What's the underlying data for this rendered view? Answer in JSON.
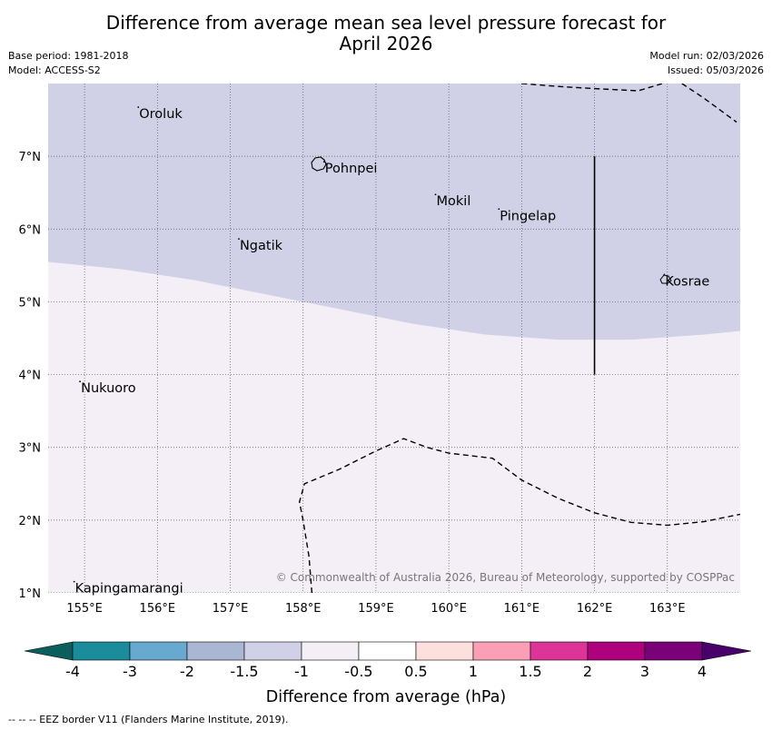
{
  "title_line1": "Difference from average mean sea level pressure forecast for",
  "title_line2": "April 2026",
  "base_period": "Base period: 1981-2018",
  "model": "Model: ACCESS-S2",
  "model_run": "Model run: 02/03/2026",
  "issued": "Issued: 05/03/2026",
  "copyright": "© Commonwealth of Australia 2026, Bureau of Meteorology, supported by COSPPac",
  "footer_note": "--  --  -- EEZ border V11 (Flanders Marine Institute, 2019).",
  "map": {
    "lon_range": [
      154.5,
      164.0
    ],
    "lat_range": [
      1.0,
      8.0
    ],
    "lon_ticks": [
      {
        "value": 155,
        "label": "155°E"
      },
      {
        "value": 156,
        "label": "156°E"
      },
      {
        "value": 157,
        "label": "157°E"
      },
      {
        "value": 158,
        "label": "158°E"
      },
      {
        "value": 159,
        "label": "159°E"
      },
      {
        "value": 160,
        "label": "160°E"
      },
      {
        "value": 161,
        "label": "161°E"
      },
      {
        "value": 162,
        "label": "162°E"
      },
      {
        "value": 163,
        "label": "163°E"
      }
    ],
    "lat_ticks": [
      {
        "value": 1,
        "label": "1°N"
      },
      {
        "value": 2,
        "label": "2°N"
      },
      {
        "value": 3,
        "label": "3°N"
      },
      {
        "value": 4,
        "label": "4°N"
      },
      {
        "value": 5,
        "label": "5°N"
      },
      {
        "value": 6,
        "label": "6°N"
      },
      {
        "value": 7,
        "label": "7°N"
      }
    ],
    "places": [
      {
        "name": "Oroluk",
        "lon": 155.75,
        "lat": 7.6
      },
      {
        "name": "Pohnpei",
        "lon": 158.3,
        "lat": 6.85
      },
      {
        "name": "Mokil",
        "lon": 159.83,
        "lat": 6.4
      },
      {
        "name": "Pingelap",
        "lon": 160.7,
        "lat": 6.2
      },
      {
        "name": "Ngatik",
        "lon": 157.13,
        "lat": 5.79
      },
      {
        "name": "Kosrae",
        "lon": 162.97,
        "lat": 5.3
      },
      {
        "name": "Nukuoro",
        "lon": 154.95,
        "lat": 3.83
      },
      {
        "name": "Kapingamarangi",
        "lon": 154.87,
        "lat": 1.08
      }
    ],
    "boundary_lon": 162.0,
    "boundary_lat_range": [
      4.0,
      7.0
    ],
    "zones": [
      {
        "category": "-1.5 to -1",
        "color": "#d0d1e6"
      },
      {
        "category": "-1 to -0.5",
        "color": "#f4eef6"
      }
    ],
    "zone_boundary": [
      [
        154.5,
        5.55
      ],
      [
        155.5,
        5.45
      ],
      [
        156.5,
        5.3
      ],
      [
        157.5,
        5.1
      ],
      [
        158.5,
        4.9
      ],
      [
        159.5,
        4.7
      ],
      [
        160.5,
        4.55
      ],
      [
        161.5,
        4.48
      ],
      [
        162.5,
        4.48
      ],
      [
        163.5,
        4.55
      ],
      [
        164.0,
        4.6
      ]
    ],
    "eez_lines": [
      [
        [
          161.0,
          8.0
        ],
        [
          161.5,
          7.96
        ],
        [
          162.0,
          7.93
        ],
        [
          162.6,
          7.9
        ],
        [
          163.0,
          8.02
        ]
      ],
      [
        [
          163.2,
          8.0
        ],
        [
          163.5,
          7.8
        ],
        [
          163.95,
          7.47
        ]
      ],
      [
        [
          158.12,
          1.0
        ],
        [
          158.08,
          1.5
        ],
        [
          158.0,
          2.0
        ],
        [
          157.95,
          2.25
        ],
        [
          158.02,
          2.5
        ],
        [
          158.5,
          2.7
        ],
        [
          159.0,
          2.95
        ],
        [
          159.38,
          3.12
        ],
        [
          159.7,
          3.0
        ],
        [
          160.0,
          2.92
        ],
        [
          160.6,
          2.85
        ],
        [
          161.0,
          2.55
        ],
        [
          161.5,
          2.3
        ],
        [
          162.0,
          2.1
        ],
        [
          162.5,
          1.97
        ],
        [
          163.0,
          1.93
        ],
        [
          163.5,
          1.98
        ],
        [
          164.0,
          2.08
        ]
      ]
    ]
  },
  "legend": {
    "label": "Difference from average (hPa)",
    "ticks": [
      "-4",
      "-3",
      "-2",
      "-1.5",
      "-1",
      "-0.5",
      "0.5",
      "1",
      "1.5",
      "2",
      "3",
      "4"
    ],
    "colors": [
      "#1b8c9b",
      "#67a9cf",
      "#a9b7d5",
      "#d0d1e6",
      "#f4eef6",
      "#ffffff",
      "#fde0dd",
      "#fa9fb5",
      "#dd3497",
      "#ae017e",
      "#7a0177"
    ],
    "under_color": "#0b5e5c",
    "over_color": "#49006a"
  }
}
